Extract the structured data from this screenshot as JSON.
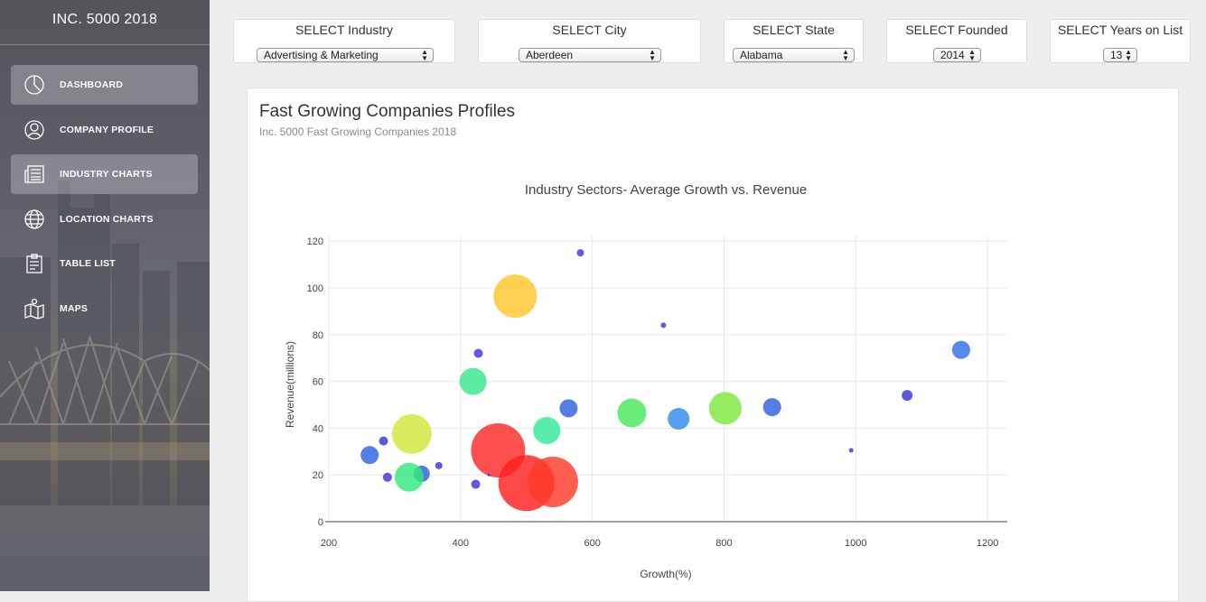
{
  "brand": "INC. 5000 2018",
  "sidebar": {
    "items": [
      {
        "label": "DASHBOARD",
        "icon": "pie-chart-icon",
        "active": true
      },
      {
        "label": "COMPANY PROFILE",
        "icon": "user-icon",
        "active": false
      },
      {
        "label": "INDUSTRY CHARTS",
        "icon": "newspaper-icon",
        "active": true
      },
      {
        "label": "LOCATION CHARTS",
        "icon": "globe-icon",
        "active": false
      },
      {
        "label": "TABLE LIST",
        "icon": "clipboard-icon",
        "active": false
      },
      {
        "label": "MAPS",
        "icon": "map-icon",
        "active": false
      }
    ]
  },
  "filters": [
    {
      "label": "SELECT Industry",
      "value": "Advertising & Marketing"
    },
    {
      "label": "SELECT City",
      "value": "Aberdeen"
    },
    {
      "label": "SELECT State",
      "value": "Alabama"
    },
    {
      "label": "SELECT Founded",
      "value": "2014"
    },
    {
      "label": "SELECT Years on List",
      "value": "13"
    }
  ],
  "card": {
    "title": "Fast Growing Companies Profiles",
    "subtitle": "Inc. 5000 Fast Growing Companies 2018"
  },
  "chart_data": {
    "type": "scatter",
    "title": "Industry Sectors- Average Growth vs. Revenue",
    "xlabel": "Growth(%)",
    "ylabel": "Revenue(millions)",
    "xlim": [
      200,
      1230
    ],
    "ylim": [
      0,
      122
    ],
    "xticks": [
      200,
      400,
      600,
      800,
      1000,
      1200
    ],
    "yticks": [
      0,
      20,
      40,
      60,
      80,
      100,
      120
    ],
    "grid": true,
    "points": [
      {
        "x": 582,
        "y": 115,
        "size": 4,
        "color": "#3a35d6"
      },
      {
        "x": 483,
        "y": 96.5,
        "size": 24,
        "color": "#ffc72c"
      },
      {
        "x": 708,
        "y": 84,
        "size": 3,
        "color": "#3a35d6"
      },
      {
        "x": 1160,
        "y": 73.5,
        "size": 10,
        "color": "#2f6fe8"
      },
      {
        "x": 427,
        "y": 72,
        "size": 5,
        "color": "#3a35d6"
      },
      {
        "x": 419,
        "y": 60,
        "size": 15,
        "color": "#38e88c"
      },
      {
        "x": 1078,
        "y": 54,
        "size": 6,
        "color": "#3a35d6"
      },
      {
        "x": 564,
        "y": 48.5,
        "size": 10,
        "color": "#3060e0"
      },
      {
        "x": 873,
        "y": 49,
        "size": 10,
        "color": "#3060e0"
      },
      {
        "x": 802,
        "y": 48.5,
        "size": 18,
        "color": "#7ee83a"
      },
      {
        "x": 660,
        "y": 46.5,
        "size": 16,
        "color": "#49e860"
      },
      {
        "x": 731,
        "y": 44,
        "size": 12,
        "color": "#2f8ce8"
      },
      {
        "x": 531,
        "y": 39,
        "size": 15,
        "color": "#33e89b"
      },
      {
        "x": 326,
        "y": 37.5,
        "size": 22,
        "color": "#cfe83a"
      },
      {
        "x": 283,
        "y": 34.5,
        "size": 5,
        "color": "#3a35d6"
      },
      {
        "x": 993,
        "y": 30.5,
        "size": 2.5,
        "color": "#3a35d6"
      },
      {
        "x": 457,
        "y": 30.5,
        "size": 30,
        "color": "#ff2a2a"
      },
      {
        "x": 262,
        "y": 28.5,
        "size": 10,
        "color": "#3060e0"
      },
      {
        "x": 367,
        "y": 24,
        "size": 4,
        "color": "#3a35d6"
      },
      {
        "x": 341,
        "y": 20.5,
        "size": 9,
        "color": "#3060e0"
      },
      {
        "x": 289,
        "y": 19,
        "size": 5,
        "color": "#3a35d6"
      },
      {
        "x": 322,
        "y": 19,
        "size": 16,
        "color": "#33e87d"
      },
      {
        "x": 443,
        "y": 20,
        "size": 1.5,
        "color": "#3a35d6"
      },
      {
        "x": 500,
        "y": 16.5,
        "size": 31,
        "color": "#ff2020"
      },
      {
        "x": 540,
        "y": 17,
        "size": 28,
        "color": "#ff3b2a"
      },
      {
        "x": 423,
        "y": 16,
        "size": 5,
        "color": "#3a35d6"
      }
    ]
  }
}
